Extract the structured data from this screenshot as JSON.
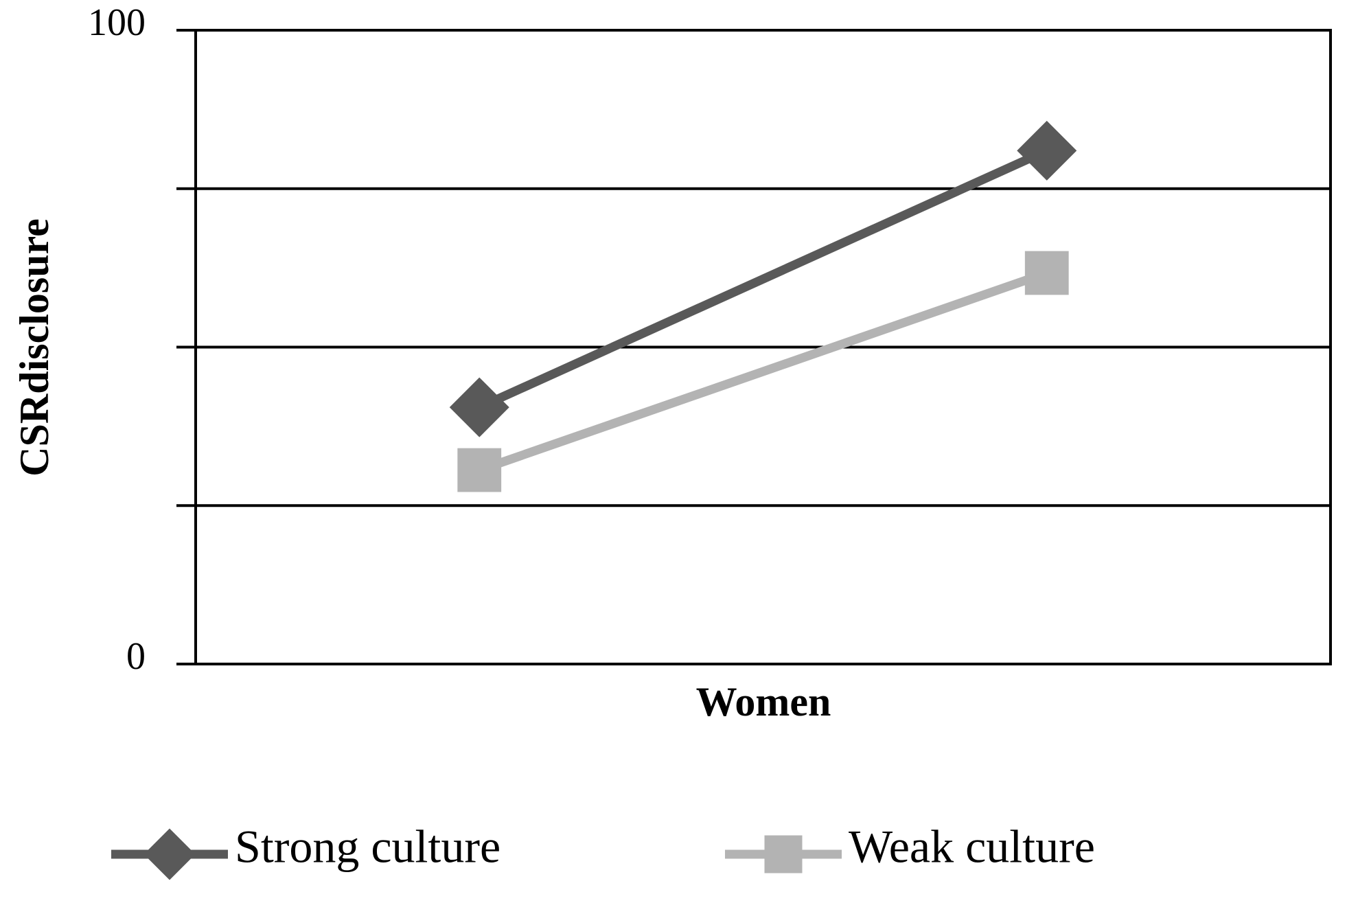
{
  "chart_data": {
    "type": "line",
    "x_label": "Women",
    "y_label": "CSRdisclosure",
    "categories": [
      null,
      null
    ],
    "series": [
      {
        "name": "Strong culture",
        "color": "#595959",
        "marker": "diamond",
        "values": [
          40.5,
          81
        ]
      },
      {
        "name": "Weak culture",
        "color": "#b3b3b3",
        "marker": "square",
        "values": [
          30.6,
          61.7
        ]
      }
    ],
    "ylim": [
      0,
      100
    ],
    "yticks": [
      0,
      100
    ],
    "ygrid": [
      25,
      50,
      75
    ],
    "grid": true,
    "legend": "bottom"
  }
}
